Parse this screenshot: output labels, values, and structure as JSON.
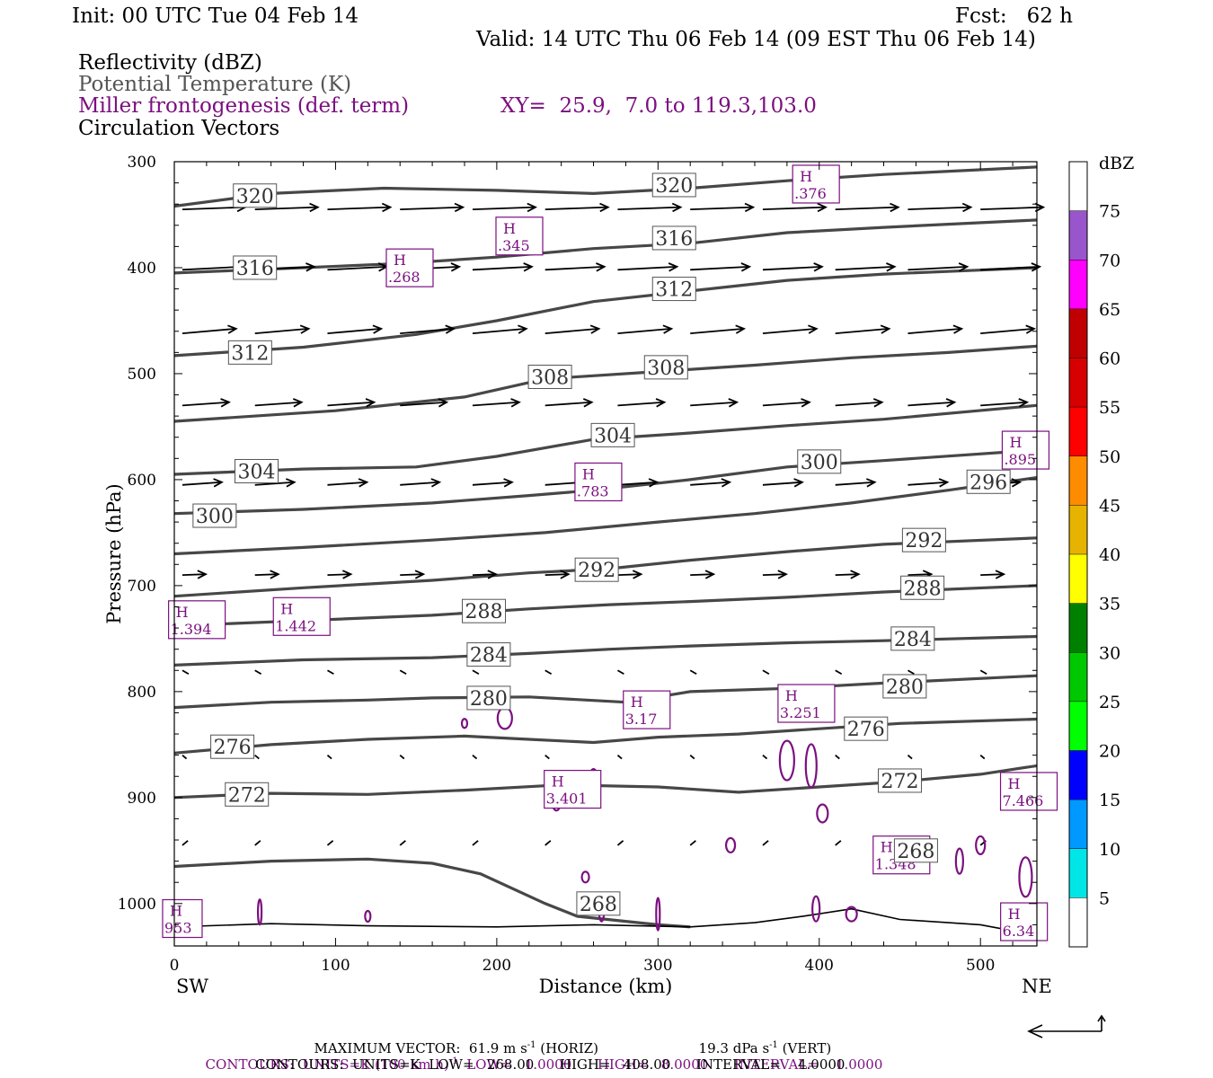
{
  "header": {
    "init": "Init: 00 UTC Tue 04 Feb 14",
    "fcst": "Fcst:   62 h",
    "valid": "Valid: 14 UTC Thu 06 Feb 14 (09 EST Thu 06 Feb 14)",
    "field1": "Reflectivity (dBZ)",
    "field2": "Potential Temperature (K)",
    "field3": "Miller frontogenesis (def. term)",
    "xy": "XY=  25.9,  7.0 to 119.3,103.0",
    "field4": "Circulation Vectors"
  },
  "colors": {
    "theta": "#474747",
    "fronto": "#7b1080",
    "vectors": "#000000"
  },
  "chart_data": {
    "type": "cross-section",
    "ylabel": "Pressure (hPa)",
    "xlabel": "Distance (km)",
    "x_range": [
      0,
      535
    ],
    "y_range": [
      300,
      1040
    ],
    "y_scale": "linear",
    "x_ticks": [
      "0",
      "100",
      "200",
      "300",
      "400",
      "500"
    ],
    "y_ticks": [
      "300",
      "400",
      "500",
      "600",
      "700",
      "800",
      "900",
      "1000"
    ],
    "x_left_label": "SW",
    "x_right_label": "NE",
    "colorbar": {
      "unit": "dBZ",
      "levels": [
        "5",
        "10",
        "15",
        "20",
        "25",
        "30",
        "35",
        "40",
        "45",
        "50",
        "55",
        "60",
        "65",
        "70",
        "75"
      ],
      "colors": [
        "#ffffff",
        "#00e6e6",
        "#0099ff",
        "#0000ff",
        "#00ff00",
        "#00c800",
        "#008000",
        "#ffff00",
        "#e6b400",
        "#ff8c00",
        "#ff0000",
        "#d60000",
        "#c00000",
        "#ff00ff",
        "#9955cc",
        "#ffffff"
      ]
    },
    "theta_contours": [
      {
        "value": 320,
        "points": [
          [
            0,
            342
          ],
          [
            60,
            330
          ],
          [
            130,
            325
          ],
          [
            200,
            327
          ],
          [
            260,
            330
          ],
          [
            320,
            325
          ],
          [
            380,
            318
          ],
          [
            440,
            312
          ],
          [
            535,
            305
          ]
        ],
        "labels": [
          [
            50,
            332
          ],
          [
            310,
            322
          ]
        ]
      },
      {
        "value": 316,
        "points": [
          [
            0,
            405
          ],
          [
            80,
            400
          ],
          [
            140,
            396
          ],
          [
            200,
            390
          ],
          [
            260,
            382
          ],
          [
            320,
            377
          ],
          [
            380,
            367
          ],
          [
            440,
            362
          ],
          [
            535,
            355
          ]
        ],
        "labels": [
          [
            50,
            400
          ],
          [
            310,
            372
          ]
        ]
      },
      {
        "value": 312,
        "points": [
          [
            0,
            483
          ],
          [
            80,
            475
          ],
          [
            150,
            463
          ],
          [
            200,
            450
          ],
          [
            260,
            432
          ],
          [
            320,
            422
          ],
          [
            380,
            412
          ],
          [
            440,
            406
          ],
          [
            535,
            400
          ]
        ],
        "labels": [
          [
            47,
            480
          ],
          [
            310,
            420
          ]
        ]
      },
      {
        "value": 308,
        "points": [
          [
            0,
            545
          ],
          [
            100,
            535
          ],
          [
            180,
            522
          ],
          [
            230,
            505
          ],
          [
            300,
            498
          ],
          [
            360,
            492
          ],
          [
            420,
            485
          ],
          [
            480,
            480
          ],
          [
            535,
            474
          ]
        ],
        "labels": [
          [
            233,
            503
          ],
          [
            305,
            494
          ]
        ]
      },
      {
        "value": 304,
        "points": [
          [
            0,
            595
          ],
          [
            80,
            590
          ],
          [
            150,
            588
          ],
          [
            200,
            578
          ],
          [
            260,
            562
          ],
          [
            320,
            556
          ],
          [
            380,
            549
          ],
          [
            440,
            543
          ],
          [
            535,
            530
          ]
        ],
        "labels": [
          [
            51,
            592
          ],
          [
            272,
            558
          ]
        ]
      },
      {
        "value": 300,
        "points": [
          [
            0,
            632
          ],
          [
            80,
            628
          ],
          [
            160,
            622
          ],
          [
            220,
            615
          ],
          [
            260,
            610
          ],
          [
            320,
            600
          ],
          [
            380,
            588
          ],
          [
            440,
            582
          ],
          [
            535,
            572
          ]
        ],
        "labels": [
          [
            25,
            634
          ],
          [
            400,
            583
          ]
        ]
      },
      {
        "value": 296,
        "points": [
          [
            0,
            670
          ],
          [
            80,
            664
          ],
          [
            160,
            657
          ],
          [
            230,
            650
          ],
          [
            300,
            640
          ],
          [
            360,
            632
          ],
          [
            420,
            622
          ],
          [
            480,
            610
          ],
          [
            535,
            598
          ]
        ],
        "labels": [
          [
            505,
            602
          ]
        ]
      },
      {
        "value": 292,
        "points": [
          [
            0,
            710
          ],
          [
            80,
            702
          ],
          [
            160,
            695
          ],
          [
            220,
            688
          ],
          [
            270,
            684
          ],
          [
            320,
            676
          ],
          [
            380,
            668
          ],
          [
            440,
            661
          ],
          [
            535,
            655
          ]
        ],
        "labels": [
          [
            262,
            685
          ],
          [
            465,
            657
          ]
        ]
      },
      {
        "value": 288,
        "points": [
          [
            0,
            738
          ],
          [
            80,
            733
          ],
          [
            160,
            728
          ],
          [
            220,
            722
          ],
          [
            270,
            718
          ],
          [
            320,
            715
          ],
          [
            380,
            711
          ],
          [
            440,
            706
          ],
          [
            535,
            700
          ]
        ],
        "labels": [
          [
            192,
            724
          ],
          [
            464,
            702
          ]
        ]
      },
      {
        "value": 284,
        "points": [
          [
            0,
            775
          ],
          [
            80,
            770
          ],
          [
            160,
            768
          ],
          [
            220,
            764
          ],
          [
            270,
            760
          ],
          [
            320,
            757
          ],
          [
            380,
            754
          ],
          [
            440,
            752
          ],
          [
            535,
            748
          ]
        ],
        "labels": [
          [
            195,
            765
          ],
          [
            458,
            750
          ]
        ]
      },
      {
        "value": 280,
        "points": [
          [
            0,
            815
          ],
          [
            60,
            810
          ],
          [
            120,
            808
          ],
          [
            160,
            806
          ],
          [
            220,
            805
          ],
          [
            280,
            810
          ],
          [
            320,
            800
          ],
          [
            380,
            797
          ],
          [
            440,
            792
          ],
          [
            535,
            785
          ]
        ],
        "labels": [
          [
            195,
            806
          ],
          [
            453,
            795
          ]
        ]
      },
      {
        "value": 276,
        "points": [
          [
            0,
            858
          ],
          [
            60,
            850
          ],
          [
            120,
            845
          ],
          [
            180,
            842
          ],
          [
            220,
            845
          ],
          [
            260,
            848
          ],
          [
            300,
            843
          ],
          [
            350,
            840
          ],
          [
            400,
            835
          ],
          [
            450,
            830
          ],
          [
            535,
            826
          ]
        ],
        "labels": [
          [
            36,
            852
          ],
          [
            429,
            835
          ]
        ]
      },
      {
        "value": 272,
        "points": [
          [
            0,
            900
          ],
          [
            60,
            896
          ],
          [
            120,
            897
          ],
          [
            180,
            893
          ],
          [
            240,
            888
          ],
          [
            300,
            890
          ],
          [
            350,
            895
          ],
          [
            400,
            890
          ],
          [
            450,
            885
          ],
          [
            500,
            878
          ],
          [
            535,
            870
          ]
        ],
        "labels": [
          [
            45,
            897
          ],
          [
            450,
            884
          ]
        ]
      },
      {
        "value": 268,
        "points": [
          [
            0,
            965
          ],
          [
            60,
            960
          ],
          [
            120,
            958
          ],
          [
            160,
            962
          ],
          [
            190,
            972
          ],
          [
            230,
            1000
          ],
          [
            250,
            1012
          ],
          [
            300,
            1020
          ],
          [
            320,
            1022
          ]
        ],
        "labels": [
          [
            263,
            1000
          ],
          [
            460,
            950
          ]
        ]
      }
    ],
    "fronto_maxima": [
      {
        "label": ".376",
        "x": 398,
        "p": 322
      },
      {
        "label": ".345",
        "x": 214,
        "p": 371
      },
      {
        "label": ".268",
        "x": 146,
        "p": 401
      },
      {
        "label": ".895",
        "x": 528,
        "p": 573
      },
      {
        "label": ".783",
        "x": 263,
        "p": 603
      },
      {
        "label": "1.394",
        "x": 14,
        "p": 733
      },
      {
        "label": "1.442",
        "x": 79,
        "p": 730
      },
      {
        "label": "3.17",
        "x": 293,
        "p": 818
      },
      {
        "label": "3.251",
        "x": 392,
        "p": 812
      },
      {
        "label": "3.401",
        "x": 247,
        "p": 893
      },
      {
        "label": "7.466",
        "x": 530,
        "p": 895
      },
      {
        "label": "1.348",
        "x": 451,
        "p": 955
      },
      {
        "label": "953",
        "x": 5,
        "p": 1015
      },
      {
        "label": "6.34",
        "x": 527,
        "p": 1018
      }
    ],
    "max_vector_horiz": "61.9",
    "max_vector_vert": "19.3"
  },
  "footer": {
    "max_vector_prefix": "MAXIMUM VECTOR:  61.9 m s",
    "max_vector_horiz_suffix": " (HORIZ)",
    "max_vector_vert_prefix": "19.3 dPa s",
    "max_vector_vert_suffix": " (VERT)",
    "sup": "-1",
    "contours1_prefix": "CONTOURS:  UNITS=K (100 km h)",
    "contours1_suffix": "  LOW=   1.0000      HIGH=   8.0000      INTERVAL=    1.0000",
    "contours2": "CONTOURS:  UNITS=K  LOW=   268.00      HIGH=   408.00      INTERVAL=    4.0000"
  }
}
